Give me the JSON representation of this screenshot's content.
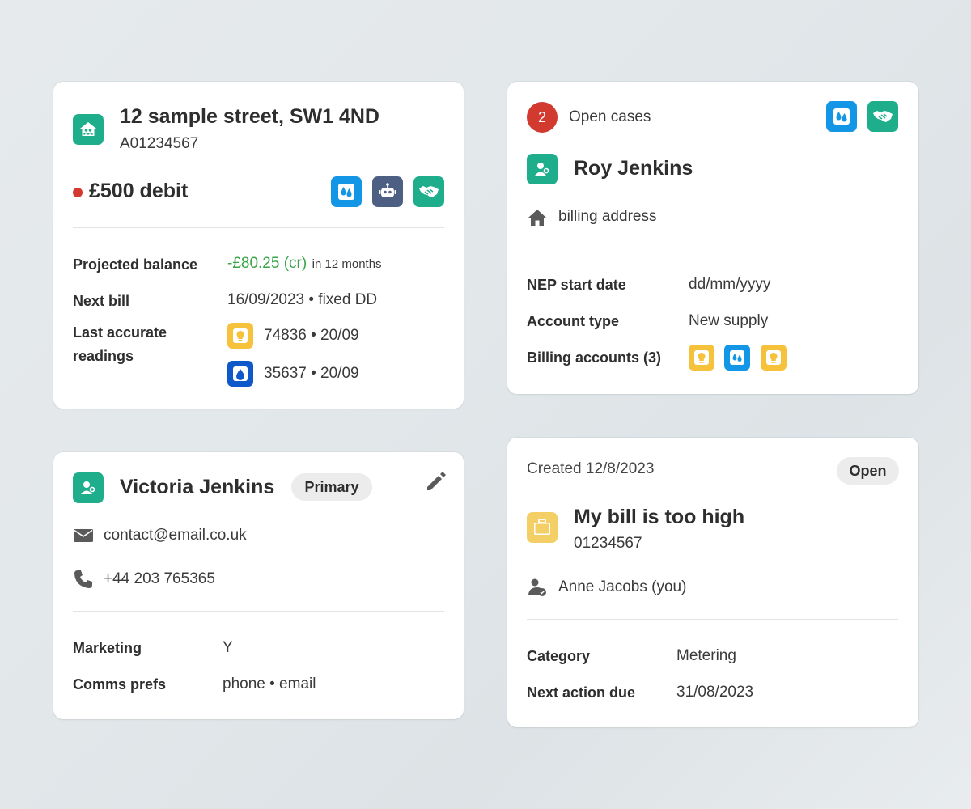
{
  "property_card": {
    "address": "12 sample street, SW1 4ND",
    "account_number": "A01234567",
    "balance": "£500 debit",
    "status_color": "#d23a2f",
    "service_icons": [
      "water-icon",
      "robot-icon",
      "handshake-icon"
    ],
    "projected_balance_label": "Projected balance",
    "projected_balance_value": "-£80.25 (cr)",
    "projected_balance_period": "in 12 months",
    "projected_color": "#3aa64a",
    "next_bill_label": "Next bill",
    "next_bill_value": "16/09/2023 • fixed DD",
    "readings_label_line1": "Last accurate",
    "readings_label_line2": "readings",
    "readings": [
      {
        "icon": "bulb-icon",
        "value": "74836 • 20/09"
      },
      {
        "icon": "droplet-icon",
        "value": "35637 • 20/09"
      }
    ]
  },
  "customer_card": {
    "open_cases_count": "2",
    "open_cases_label": "Open cases",
    "name": "Roy Jenkins",
    "billing_address": "billing address",
    "nep_label": "NEP start date",
    "nep_value": "dd/mm/yyyy",
    "account_type_label": "Account type",
    "account_type_value": "New supply",
    "billing_accounts_label": "Billing accounts (3)",
    "billing_account_icons": [
      "bulb-icon",
      "water-icon",
      "bulb-icon"
    ]
  },
  "contact_card": {
    "name": "Victoria Jenkins",
    "badge": "Primary",
    "email": "contact@email.co.uk",
    "phone": "+44 203 765365",
    "marketing_label": "Marketing",
    "marketing_value": "Y",
    "comms_label": "Comms prefs",
    "comms_value": "phone • email"
  },
  "case_card": {
    "created": "Created 12/8/2023",
    "status": "Open",
    "title": "My bill is too high",
    "case_number": "01234567",
    "assignee": "Anne Jacobs (you)",
    "category_label": "Category",
    "category_value": "Metering",
    "next_action_label": "Next action due",
    "next_action_value": "31/08/2023"
  }
}
